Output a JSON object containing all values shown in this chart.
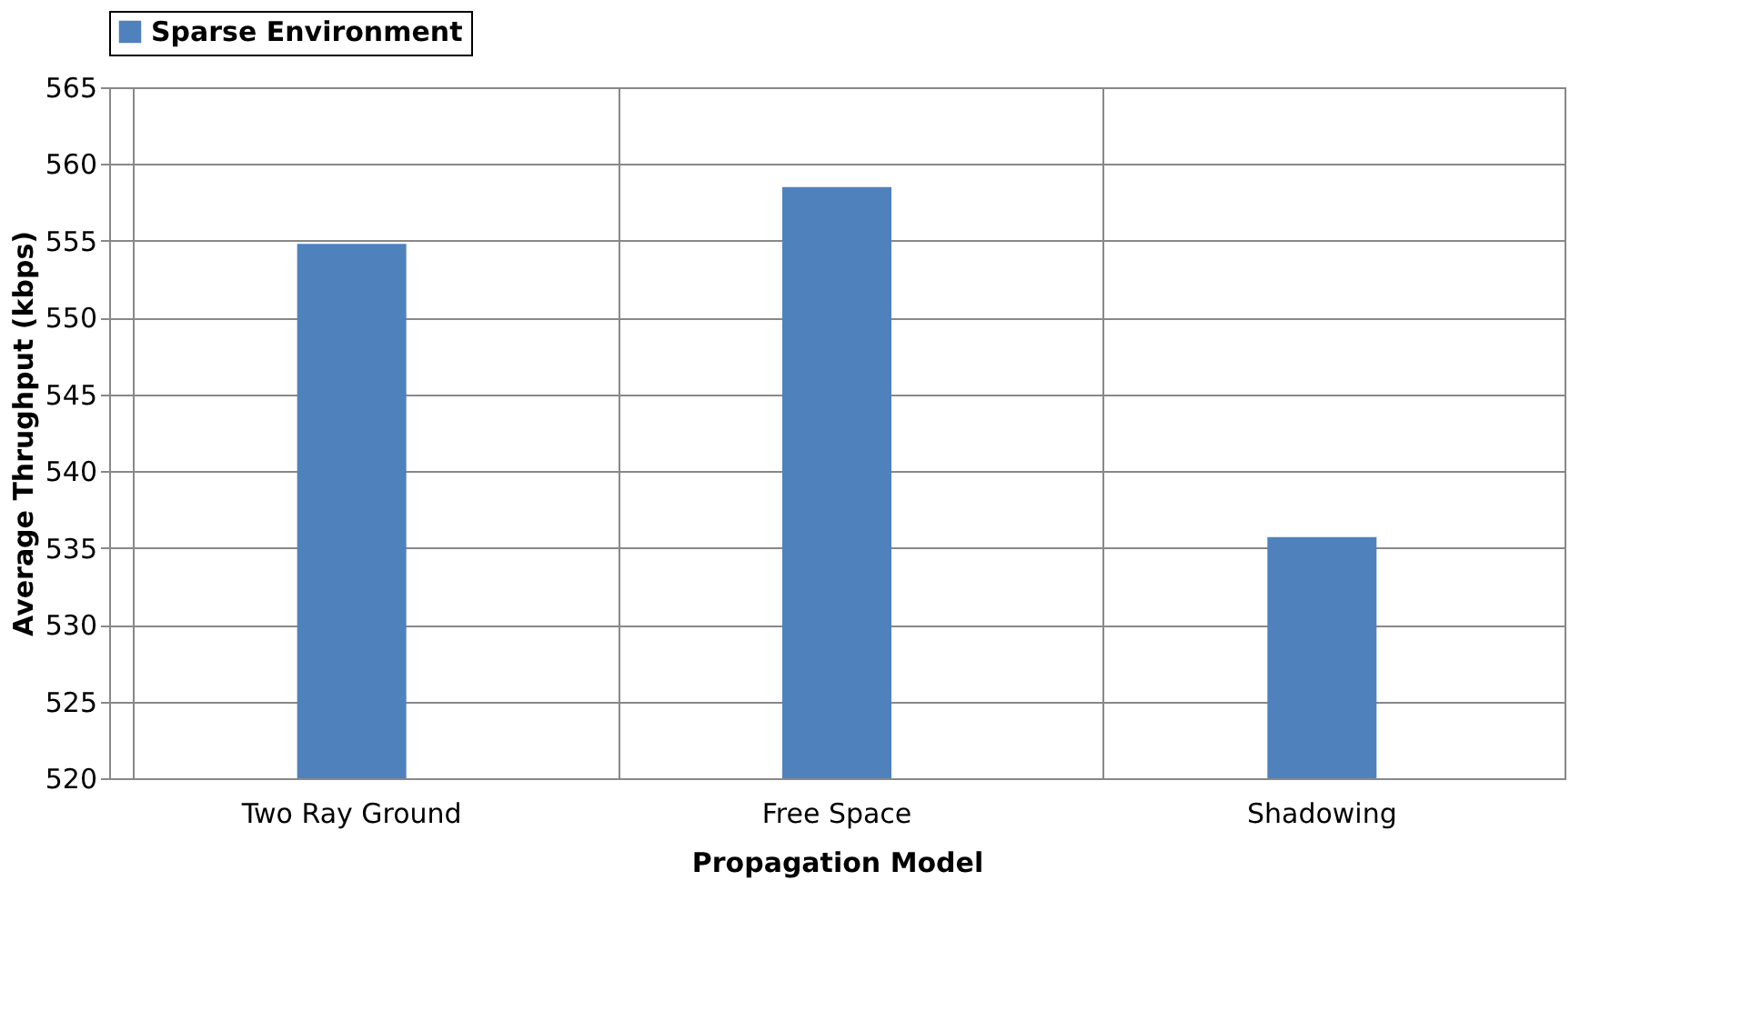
{
  "chart_data": {
    "type": "bar",
    "categories": [
      "Two Ray Ground",
      "Free Space",
      "Shadowing"
    ],
    "series": [
      {
        "name": "Sparse Environment",
        "color": "#4f81bd",
        "values": [
          554.8,
          558.5,
          535.7
        ]
      }
    ],
    "xlabel": "Propagation Model",
    "ylabel": "Average Thrughput (kbps)",
    "ylim": [
      520,
      565
    ],
    "yticks": [
      520,
      525,
      530,
      535,
      540,
      545,
      550,
      555,
      560,
      565
    ],
    "grid": true,
    "legend": "top"
  }
}
